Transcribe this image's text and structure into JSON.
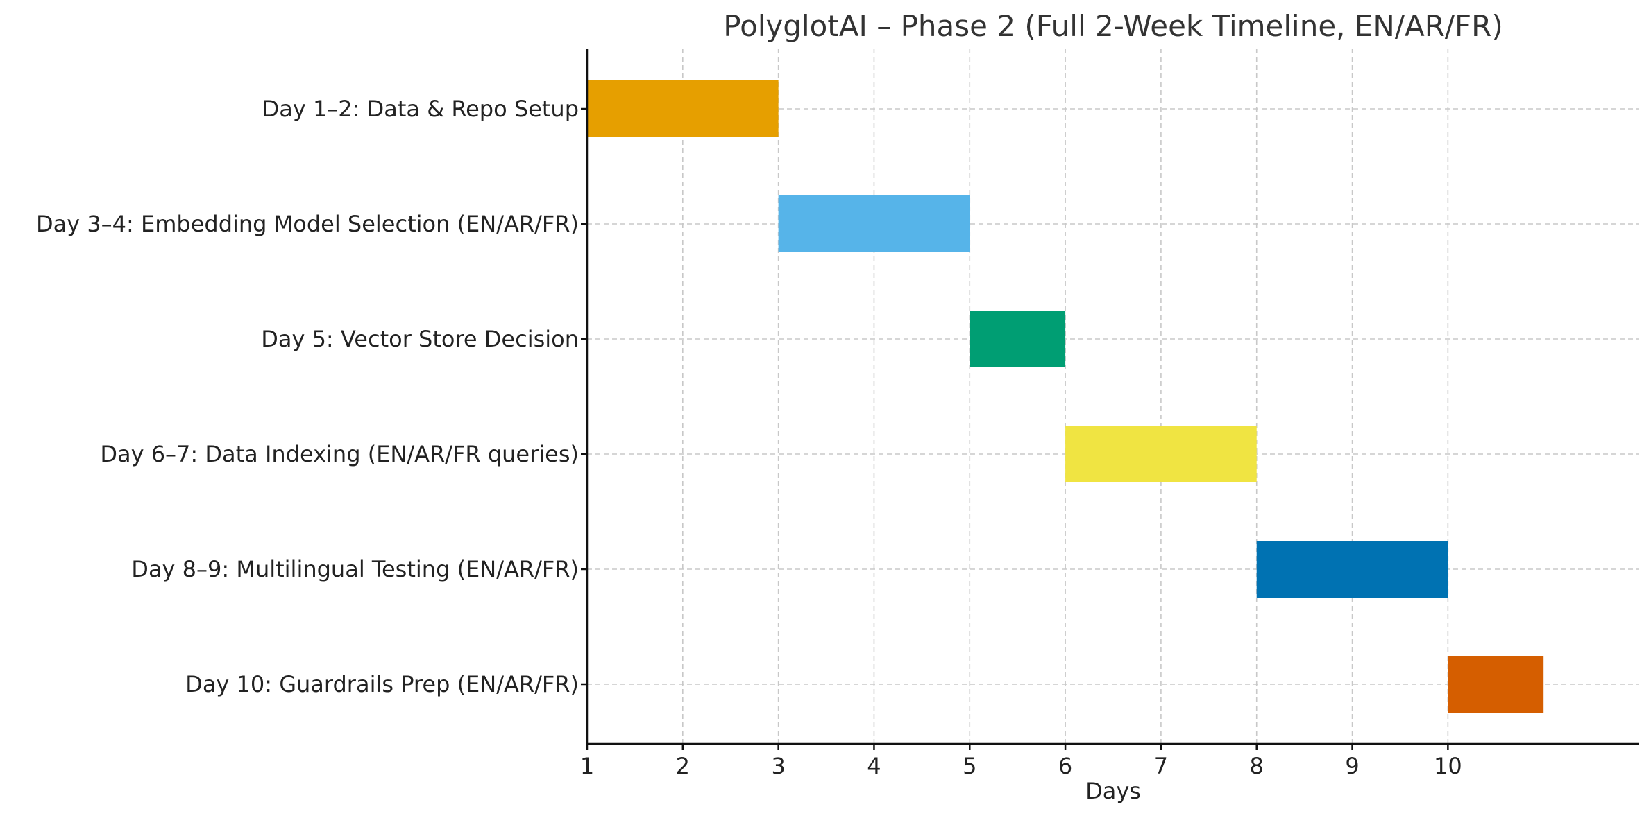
{
  "chart_data": {
    "type": "bar",
    "orientation": "horizontal",
    "title": "PolyglotAI – Phase 2 (Full 2-Week Timeline, EN/AR/FR)",
    "xlabel": "Days",
    "ylabel": "",
    "xlim": [
      1,
      12
    ],
    "xticks": [
      1,
      2,
      3,
      4,
      5,
      6,
      7,
      8,
      9,
      10
    ],
    "grid": true,
    "tasks": [
      {
        "label": "Day 1–2: Data & Repo Setup",
        "start": 1,
        "end": 3,
        "color": "#E69F00"
      },
      {
        "label": "Day 3–4: Embedding Model Selection (EN/AR/FR)",
        "start": 3,
        "end": 5,
        "color": "#56B4E9"
      },
      {
        "label": "Day 5: Vector Store Decision",
        "start": 5,
        "end": 6,
        "color": "#009E73"
      },
      {
        "label": "Day 6–7: Data Indexing (EN/AR/FR queries)",
        "start": 6,
        "end": 8,
        "color": "#F0E442"
      },
      {
        "label": "Day 8–9: Multilingual Testing (EN/AR/FR)",
        "start": 8,
        "end": 10,
        "color": "#0072B2"
      },
      {
        "label": "Day 10: Guardrails Prep (EN/AR/FR)",
        "start": 10,
        "end": 11,
        "color": "#D55E00"
      }
    ]
  }
}
